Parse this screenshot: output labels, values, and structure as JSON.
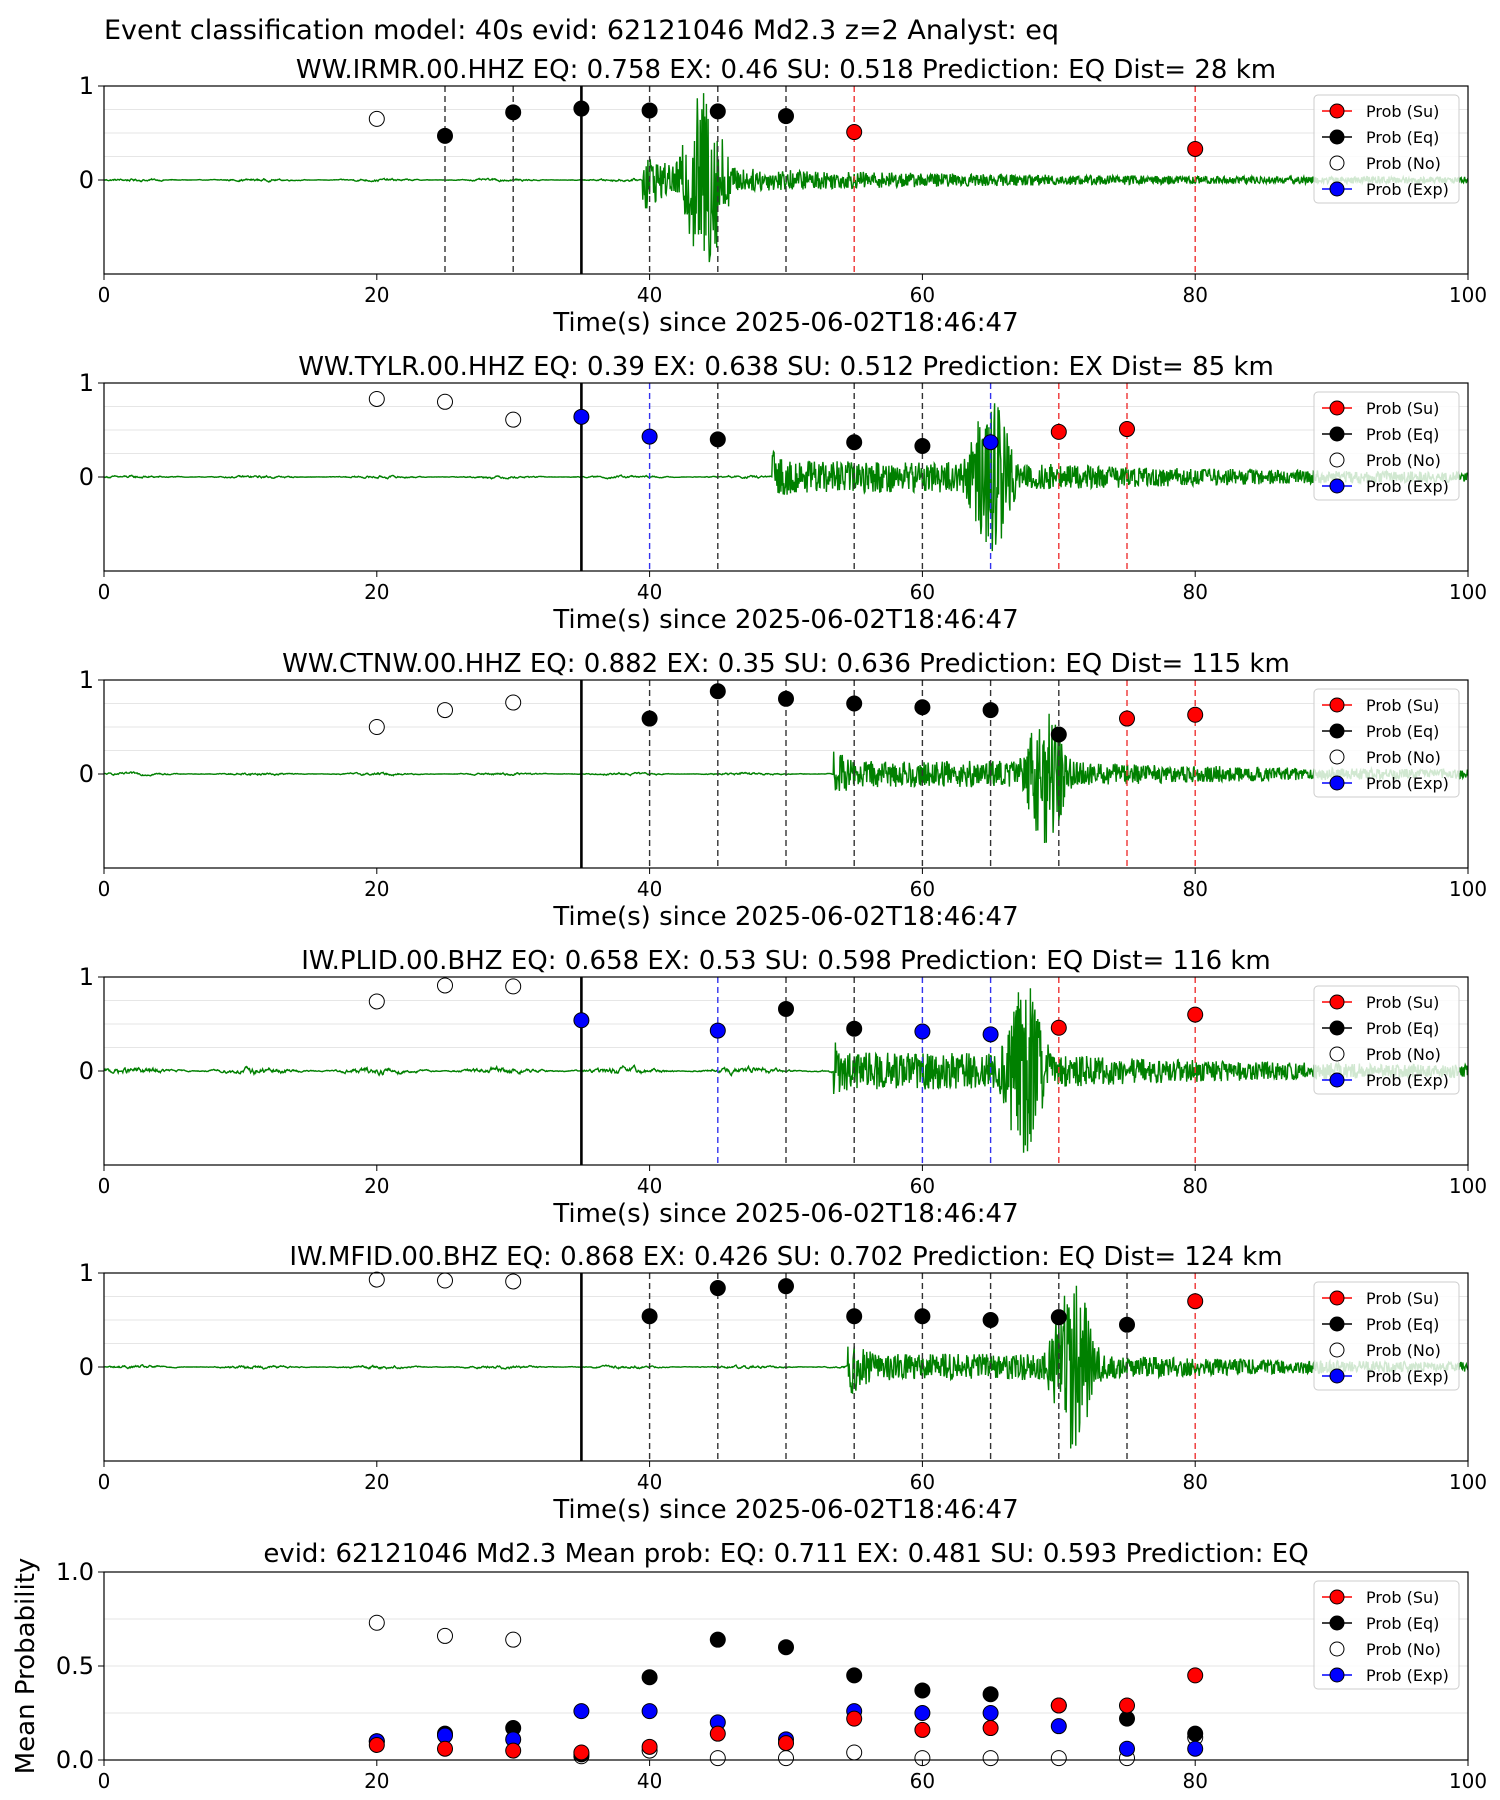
{
  "figure_title": "Event classification model: 40s evid: 62121046 Md2.3 z=2 Analyst: eq",
  "legend_labels": [
    "Prob (Su)",
    "Prob (Eq)",
    "Prob (No)",
    "Prob (Exp)"
  ],
  "colors": {
    "waveform": "#008000",
    "su": "#ff0000",
    "eq": "#000000",
    "no": "#ffffff",
    "exp": "#0000ff"
  },
  "chart_data": [
    {
      "type": "scatter",
      "title": "WW.IRMR.00.HHZ   EQ: 0.758   EX: 0.46   SU: 0.518   Prediction: EQ    Dist= 28 km",
      "xlabel": "Time(s) since 2025-06-02T18:46:47",
      "ylabel": "",
      "xlim": [
        0,
        100
      ],
      "ylim": [
        -1,
        1
      ],
      "x_ticks": [
        "0",
        "20",
        "40",
        "60",
        "80",
        "100"
      ],
      "y_ticks": [
        "0",
        "1"
      ],
      "legend_position": "top-right",
      "arrival_marker_time": 35,
      "waveform": {
        "onset": 39.5,
        "peak_time": 44,
        "peak_amplitude": 1.0,
        "noise": 0.01,
        "coda_level": 0.05
      },
      "points": [
        {
          "x": 20,
          "y": 0.65,
          "class": "no"
        },
        {
          "x": 25,
          "y": 0.47,
          "class": "eq"
        },
        {
          "x": 30,
          "y": 0.72,
          "class": "eq"
        },
        {
          "x": 35,
          "y": 0.76,
          "class": "eq"
        },
        {
          "x": 40,
          "y": 0.74,
          "class": "eq"
        },
        {
          "x": 45,
          "y": 0.73,
          "class": "eq"
        },
        {
          "x": 50,
          "y": 0.68,
          "class": "eq"
        },
        {
          "x": 55,
          "y": 0.51,
          "class": "su"
        },
        {
          "x": 80,
          "y": 0.33,
          "class": "su"
        }
      ]
    },
    {
      "type": "scatter",
      "title": "WW.TYLR.00.HHZ   EQ: 0.39   EX: 0.638   SU: 0.512   Prediction: EX    Dist= 85 km",
      "xlabel": "Time(s) since 2025-06-02T18:46:47",
      "ylabel": "",
      "xlim": [
        0,
        100
      ],
      "ylim": [
        -1,
        1
      ],
      "x_ticks": [
        "0",
        "20",
        "40",
        "60",
        "80",
        "100"
      ],
      "y_ticks": [
        "0",
        "1"
      ],
      "legend_position": "top-right",
      "arrival_marker_time": 35,
      "waveform": {
        "onset": 49,
        "peak_time": 65,
        "peak_amplitude": 0.85,
        "noise": 0.01,
        "coda_level": 0.06
      },
      "points": [
        {
          "x": 20,
          "y": 0.83,
          "class": "no"
        },
        {
          "x": 25,
          "y": 0.8,
          "class": "no"
        },
        {
          "x": 30,
          "y": 0.61,
          "class": "no"
        },
        {
          "x": 35,
          "y": 0.64,
          "class": "exp"
        },
        {
          "x": 40,
          "y": 0.43,
          "class": "exp"
        },
        {
          "x": 45,
          "y": 0.4,
          "class": "eq"
        },
        {
          "x": 55,
          "y": 0.37,
          "class": "eq"
        },
        {
          "x": 60,
          "y": 0.33,
          "class": "eq"
        },
        {
          "x": 65,
          "y": 0.37,
          "class": "exp"
        },
        {
          "x": 70,
          "y": 0.48,
          "class": "su"
        },
        {
          "x": 75,
          "y": 0.51,
          "class": "su"
        }
      ]
    },
    {
      "type": "scatter",
      "title": "WW.CTNW.00.HHZ   EQ: 0.882   EX: 0.35   SU: 0.636   Prediction: EQ    Dist= 115 km",
      "xlabel": "Time(s) since 2025-06-02T18:46:47",
      "ylabel": "",
      "xlim": [
        0,
        100
      ],
      "ylim": [
        -1,
        1
      ],
      "x_ticks": [
        "0",
        "20",
        "40",
        "60",
        "80",
        "100"
      ],
      "y_ticks": [
        "0",
        "1"
      ],
      "legend_position": "top-right",
      "arrival_marker_time": 35,
      "waveform": {
        "onset": 53.5,
        "peak_time": 69,
        "peak_amplitude": 0.75,
        "noise": 0.01,
        "coda_level": 0.05
      },
      "points": [
        {
          "x": 20,
          "y": 0.5,
          "class": "no"
        },
        {
          "x": 25,
          "y": 0.68,
          "class": "no"
        },
        {
          "x": 30,
          "y": 0.76,
          "class": "no"
        },
        {
          "x": 40,
          "y": 0.59,
          "class": "eq"
        },
        {
          "x": 45,
          "y": 0.88,
          "class": "eq"
        },
        {
          "x": 50,
          "y": 0.8,
          "class": "eq"
        },
        {
          "x": 55,
          "y": 0.75,
          "class": "eq"
        },
        {
          "x": 60,
          "y": 0.71,
          "class": "eq"
        },
        {
          "x": 65,
          "y": 0.68,
          "class": "eq"
        },
        {
          "x": 70,
          "y": 0.42,
          "class": "eq"
        },
        {
          "x": 75,
          "y": 0.59,
          "class": "su"
        },
        {
          "x": 80,
          "y": 0.63,
          "class": "su"
        }
      ]
    },
    {
      "type": "scatter",
      "title": "IW.PLID.00.BHZ   EQ: 0.658   EX: 0.53   SU: 0.598   Prediction: EQ    Dist= 116 km",
      "xlabel": "Time(s) since 2025-06-02T18:46:47",
      "ylabel": "",
      "xlim": [
        0,
        100
      ],
      "ylim": [
        -1,
        1
      ],
      "x_ticks": [
        "0",
        "20",
        "40",
        "60",
        "80",
        "100"
      ],
      "y_ticks": [
        "0",
        "1"
      ],
      "legend_position": "top-right",
      "arrival_marker_time": 35,
      "waveform": {
        "onset": 53.5,
        "peak_time": 67.5,
        "peak_amplitude": 0.95,
        "noise": 0.025,
        "coda_level": 0.07
      },
      "points": [
        {
          "x": 20,
          "y": 0.74,
          "class": "no"
        },
        {
          "x": 25,
          "y": 0.91,
          "class": "no"
        },
        {
          "x": 30,
          "y": 0.9,
          "class": "no"
        },
        {
          "x": 35,
          "y": 0.54,
          "class": "exp"
        },
        {
          "x": 45,
          "y": 0.43,
          "class": "exp"
        },
        {
          "x": 50,
          "y": 0.66,
          "class": "eq"
        },
        {
          "x": 55,
          "y": 0.45,
          "class": "eq"
        },
        {
          "x": 60,
          "y": 0.42,
          "class": "exp"
        },
        {
          "x": 65,
          "y": 0.39,
          "class": "exp"
        },
        {
          "x": 70,
          "y": 0.46,
          "class": "su"
        },
        {
          "x": 80,
          "y": 0.6,
          "class": "su"
        }
      ]
    },
    {
      "type": "scatter",
      "title": "IW.MFID.00.BHZ   EQ: 0.868   EX: 0.426   SU: 0.702   Prediction: EQ    Dist= 124 km",
      "xlabel": "Time(s) since 2025-06-02T18:46:47",
      "ylabel": "",
      "xlim": [
        0,
        100
      ],
      "ylim": [
        -1,
        1
      ],
      "x_ticks": [
        "0",
        "20",
        "40",
        "60",
        "80",
        "100"
      ],
      "y_ticks": [
        "0",
        "1"
      ],
      "legend_position": "top-right",
      "arrival_marker_time": 35,
      "waveform": {
        "onset": 54.5,
        "peak_time": 71,
        "peak_amplitude": 0.95,
        "noise": 0.012,
        "coda_level": 0.05
      },
      "points": [
        {
          "x": 20,
          "y": 0.93,
          "class": "no"
        },
        {
          "x": 25,
          "y": 0.92,
          "class": "no"
        },
        {
          "x": 30,
          "y": 0.91,
          "class": "no"
        },
        {
          "x": 40,
          "y": 0.54,
          "class": "eq"
        },
        {
          "x": 45,
          "y": 0.84,
          "class": "eq"
        },
        {
          "x": 50,
          "y": 0.86,
          "class": "eq"
        },
        {
          "x": 55,
          "y": 0.54,
          "class": "eq"
        },
        {
          "x": 60,
          "y": 0.54,
          "class": "eq"
        },
        {
          "x": 65,
          "y": 0.5,
          "class": "eq"
        },
        {
          "x": 70,
          "y": 0.53,
          "class": "eq"
        },
        {
          "x": 75,
          "y": 0.45,
          "class": "eq"
        },
        {
          "x": 80,
          "y": 0.7,
          "class": "su"
        }
      ]
    },
    {
      "type": "scatter",
      "title": "evid: 62121046  Md2.3   Mean prob:   EQ: 0.711   EX: 0.481   SU: 0.593   Prediction: EQ",
      "xlabel": "",
      "ylabel": "Mean Probability",
      "xlim": [
        0,
        100
      ],
      "ylim": [
        0,
        1
      ],
      "x_ticks": [
        "0",
        "20",
        "40",
        "60",
        "80",
        "100"
      ],
      "y_ticks": [
        "0.0",
        "0.5",
        "1.0"
      ],
      "legend_position": "top-right",
      "series": [
        {
          "name": "Prob (No)",
          "class": "no",
          "x": [
            20,
            25,
            30,
            35,
            40,
            45,
            50,
            55,
            60,
            65,
            70,
            75,
            80
          ],
          "values": [
            0.73,
            0.66,
            0.64,
            0.02,
            0.05,
            0.01,
            0.01,
            0.04,
            0.01,
            0.01,
            0.01,
            0.01,
            0.12
          ]
        },
        {
          "name": "Prob (Eq)",
          "class": "eq",
          "x": [
            20,
            25,
            30,
            35,
            40,
            45,
            50,
            55,
            60,
            65,
            70,
            75,
            80
          ],
          "values": [
            0.1,
            0.14,
            0.17,
            0.03,
            0.44,
            0.64,
            0.6,
            0.45,
            0.37,
            0.35,
            0.29,
            0.22,
            0.14
          ]
        },
        {
          "name": "Prob (Exp)",
          "class": "exp",
          "x": [
            20,
            25,
            30,
            35,
            40,
            45,
            50,
            55,
            60,
            65,
            70,
            75,
            80
          ],
          "values": [
            0.1,
            0.13,
            0.11,
            0.26,
            0.26,
            0.2,
            0.11,
            0.26,
            0.25,
            0.25,
            0.18,
            0.06,
            0.06
          ]
        },
        {
          "name": "Prob (Su)",
          "class": "su",
          "x": [
            20,
            25,
            30,
            35,
            40,
            45,
            50,
            55,
            60,
            65,
            70,
            75,
            80
          ],
          "values": [
            0.08,
            0.06,
            0.05,
            0.04,
            0.07,
            0.14,
            0.09,
            0.22,
            0.16,
            0.17,
            0.29,
            0.29,
            0.45
          ]
        }
      ]
    }
  ]
}
